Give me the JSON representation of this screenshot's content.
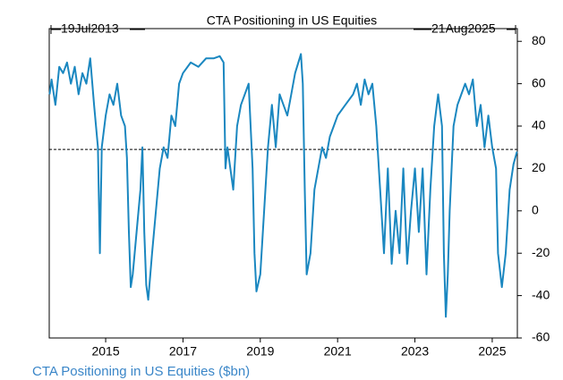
{
  "chart_data": {
    "type": "line",
    "title": "CTA Positioning in US Equities",
    "caption": "CTA Positioning in US Equities ($bn)",
    "start_label": "19Jul2013",
    "end_label": "21Aug2025",
    "reference_line": 29,
    "x": [
      2013.55,
      2013.6,
      2013.7,
      2013.8,
      2013.9,
      2014.0,
      2014.1,
      2014.2,
      2014.3,
      2014.4,
      2014.5,
      2014.6,
      2014.7,
      2014.8,
      2014.85,
      2014.9,
      2015.0,
      2015.1,
      2015.2,
      2015.3,
      2015.4,
      2015.5,
      2015.55,
      2015.6,
      2015.65,
      2015.7,
      2015.8,
      2015.9,
      2015.95,
      2016.0,
      2016.05,
      2016.1,
      2016.2,
      2016.3,
      2016.4,
      2016.5,
      2016.6,
      2016.7,
      2016.8,
      2016.9,
      2017.0,
      2017.2,
      2017.4,
      2017.6,
      2017.8,
      2017.95,
      2018.05,
      2018.1,
      2018.15,
      2018.3,
      2018.4,
      2018.5,
      2018.6,
      2018.7,
      2018.8,
      2018.85,
      2018.9,
      2019.0,
      2019.1,
      2019.2,
      2019.3,
      2019.4,
      2019.5,
      2019.6,
      2019.7,
      2019.8,
      2019.9,
      2020.05,
      2020.1,
      2020.15,
      2020.2,
      2020.3,
      2020.4,
      2020.5,
      2020.6,
      2020.7,
      2020.8,
      2020.9,
      2021.0,
      2021.2,
      2021.4,
      2021.5,
      2021.6,
      2021.7,
      2021.8,
      2021.9,
      2022.0,
      2022.1,
      2022.2,
      2022.3,
      2022.4,
      2022.5,
      2022.6,
      2022.7,
      2022.8,
      2022.9,
      2023.0,
      2023.1,
      2023.2,
      2023.3,
      2023.4,
      2023.5,
      2023.6,
      2023.7,
      2023.75,
      2023.8,
      2023.85,
      2023.9,
      2024.0,
      2024.1,
      2024.2,
      2024.3,
      2024.4,
      2024.5,
      2024.6,
      2024.7,
      2024.8,
      2024.9,
      2025.0,
      2025.1,
      2025.15,
      2025.25,
      2025.35,
      2025.45,
      2025.55,
      2025.64
    ],
    "series": [
      {
        "name": "CTA Positioning in US Equities",
        "color": "#1a87c0",
        "values": [
          55,
          62,
          50,
          68,
          65,
          70,
          60,
          68,
          55,
          65,
          60,
          72,
          50,
          30,
          -20,
          30,
          45,
          55,
          50,
          60,
          45,
          40,
          25,
          -10,
          -36,
          -30,
          -10,
          10,
          30,
          -10,
          -35,
          -42,
          -20,
          0,
          20,
          30,
          25,
          45,
          40,
          60,
          65,
          70,
          68,
          72,
          72,
          73,
          70,
          20,
          30,
          10,
          40,
          50,
          55,
          60,
          20,
          -20,
          -38,
          -30,
          0,
          30,
          50,
          30,
          55,
          50,
          45,
          55,
          65,
          74,
          60,
          10,
          -30,
          -20,
          10,
          20,
          30,
          25,
          35,
          40,
          45,
          50,
          55,
          60,
          50,
          62,
          55,
          60,
          40,
          10,
          -20,
          20,
          -25,
          0,
          -20,
          20,
          -25,
          0,
          20,
          -10,
          20,
          -30,
          10,
          40,
          55,
          40,
          -20,
          -50,
          -30,
          0,
          40,
          50,
          55,
          60,
          55,
          62,
          40,
          50,
          30,
          45,
          30,
          20,
          -20,
          -36,
          -20,
          10,
          22,
          28
        ]
      }
    ],
    "xlim": [
      2013.54,
      2025.65
    ],
    "xticks": [
      2015,
      2017,
      2019,
      2021,
      2023,
      2025
    ],
    "ylim": [
      -60,
      86
    ],
    "yticks": [
      -60,
      -40,
      -20,
      0,
      20,
      40,
      60,
      80
    ],
    "y_axis_side": "right"
  }
}
